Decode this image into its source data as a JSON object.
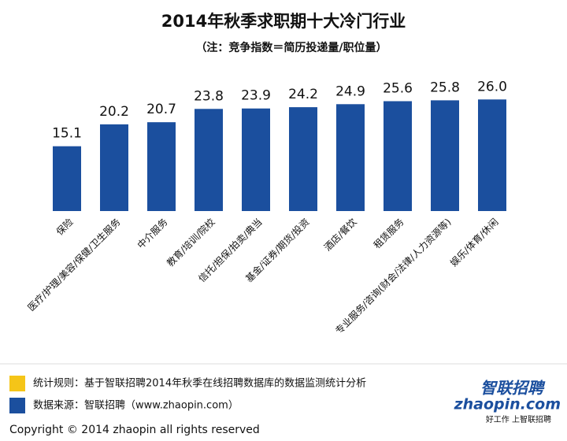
{
  "chart_data": {
    "type": "bar",
    "title": "2014年秋季求职期十大冷门行业",
    "subtitle": "（注：竞争指数＝简历投递量/职位量）",
    "categories": [
      "保险",
      "医疗/护理/美容/保健/卫生服务",
      "中介服务",
      "教育/培训/院校",
      "信托/担保/拍卖/典当",
      "基金/证券/期货/投资",
      "酒店/餐饮",
      "租赁服务",
      "专业服务/咨询(财会/法律/人力资源等)",
      "娱乐/体育/休闲"
    ],
    "values": [
      15.1,
      20.2,
      20.7,
      23.8,
      23.9,
      24.2,
      24.9,
      25.6,
      25.8,
      26.0
    ],
    "value_labels": [
      "15.1",
      "20.2",
      "20.7",
      "23.8",
      "23.9",
      "24.2",
      "24.9",
      "25.6",
      "25.8",
      "26.0"
    ],
    "color": "#1b4f9e"
  },
  "notes": [
    {
      "text": "统计规则：基于智联招聘2014年秋季在线招聘数据库的数据监测统计分析",
      "color": "#f5c518"
    },
    {
      "text": "数据来源：智联招聘（www.zhaopin.com）",
      "color": "#1b4f9e"
    }
  ],
  "footer": {
    "copyright": "Copyright  ©  2014 zhaopin all rights reserved",
    "logo_cn": "智联招聘",
    "logo_en": "zhaopin.com",
    "slogan": "好工作 上智联招聘"
  }
}
